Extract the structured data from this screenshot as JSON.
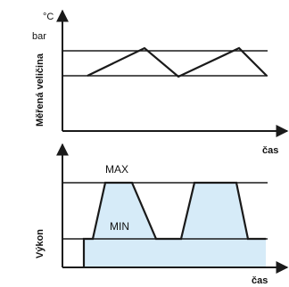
{
  "top_chart": {
    "unit_celsius": "°C",
    "unit_bar": "bar",
    "ylabel": "Měřená veličina",
    "xlabel": "čas"
  },
  "bottom_chart": {
    "ylabel": "Výkon",
    "xlabel": "čas",
    "max_label": "MAX",
    "min_label": "MIN"
  },
  "colors": {
    "line": "#1a1a1a",
    "fill": "#d6ebf8",
    "fill_stroke": "#1a1a1a"
  }
}
